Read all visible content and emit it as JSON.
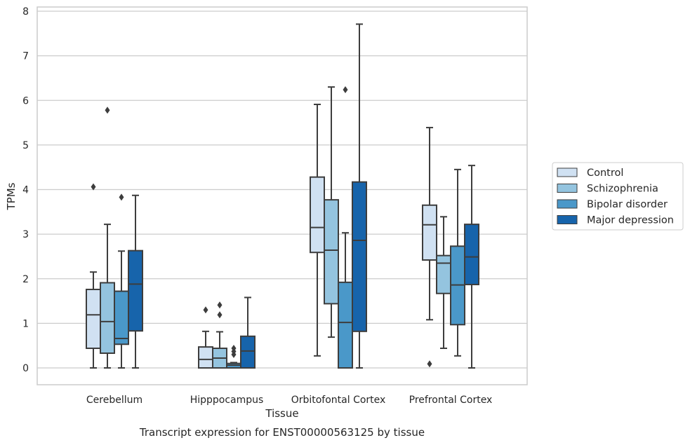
{
  "chart_data": {
    "type": "box",
    "caption": "Transcript expression for ENST00000563125 by tissue",
    "xlabel": "Tissue",
    "ylabel": "TPMs",
    "ylim": [
      -0.35,
      8.1
    ],
    "yticks": [
      0,
      1,
      2,
      3,
      4,
      5,
      6,
      7,
      8
    ],
    "grid": "horizontal",
    "legend_position": "right",
    "categories": [
      "Cerebellum",
      "Hipppocampus",
      "Orbitofontal Cortex",
      "Prefrontal Cortex"
    ],
    "series": [
      {
        "name": "Control",
        "color": "#d0e1f2",
        "boxes": [
          {
            "whisker_low": 0.0,
            "q1": 0.44,
            "median": 1.19,
            "q3": 1.76,
            "whisker_high": 2.15,
            "outliers": [
              4.06
            ]
          },
          {
            "whisker_low": 0.0,
            "q1": 0.0,
            "median": 0.19,
            "q3": 0.47,
            "whisker_high": 0.82,
            "outliers": [
              1.3
            ]
          },
          {
            "whisker_low": 0.27,
            "q1": 2.59,
            "median": 3.15,
            "q3": 4.28,
            "whisker_high": 5.91,
            "outliers": []
          },
          {
            "whisker_low": 1.08,
            "q1": 2.42,
            "median": 3.21,
            "q3": 3.65,
            "whisker_high": 5.39,
            "outliers": [
              0.09
            ]
          }
        ]
      },
      {
        "name": "Schizophrenia",
        "color": "#94c4df",
        "boxes": [
          {
            "whisker_low": 0.0,
            "q1": 0.33,
            "median": 1.04,
            "q3": 1.91,
            "whisker_high": 3.22,
            "outliers": [
              5.78
            ]
          },
          {
            "whisker_low": 0.0,
            "q1": 0.0,
            "median": 0.22,
            "q3": 0.44,
            "whisker_high": 0.81,
            "outliers": [
              1.19,
              1.41
            ]
          },
          {
            "whisker_low": 0.69,
            "q1": 1.44,
            "median": 2.64,
            "q3": 3.77,
            "whisker_high": 6.3,
            "outliers": []
          },
          {
            "whisker_low": 0.44,
            "q1": 1.67,
            "median": 2.35,
            "q3": 2.52,
            "whisker_high": 3.39,
            "outliers": []
          }
        ]
      },
      {
        "name": "Bipolar disorder",
        "color": "#4a98c9",
        "boxes": [
          {
            "whisker_low": 0.0,
            "q1": 0.53,
            "median": 0.66,
            "q3": 1.72,
            "whisker_high": 2.62,
            "outliers": [
              3.83
            ]
          },
          {
            "whisker_low": 0.0,
            "q1": 0.0,
            "median": 0.06,
            "q3": 0.1,
            "whisker_high": 0.12,
            "outliers": [
              0.3,
              0.37,
              0.44
            ]
          },
          {
            "whisker_low": 0.0,
            "q1": 0.0,
            "median": 1.02,
            "q3": 1.92,
            "whisker_high": 3.03,
            "outliers": [
              6.24
            ]
          },
          {
            "whisker_low": 0.27,
            "q1": 0.97,
            "median": 1.86,
            "q3": 2.73,
            "whisker_high": 4.45,
            "outliers": []
          }
        ]
      },
      {
        "name": "Major depression",
        "color": "#1764ab",
        "boxes": [
          {
            "whisker_low": 0.0,
            "q1": 0.83,
            "median": 1.88,
            "q3": 2.63,
            "whisker_high": 3.87,
            "outliers": []
          },
          {
            "whisker_low": 0.0,
            "q1": 0.0,
            "median": 0.38,
            "q3": 0.71,
            "whisker_high": 1.58,
            "outliers": []
          },
          {
            "whisker_low": 0.0,
            "q1": 0.82,
            "median": 2.86,
            "q3": 4.17,
            "whisker_high": 7.71,
            "outliers": []
          },
          {
            "whisker_low": 0.0,
            "q1": 1.87,
            "median": 2.49,
            "q3": 3.22,
            "whisker_high": 4.54,
            "outliers": []
          }
        ]
      }
    ]
  }
}
